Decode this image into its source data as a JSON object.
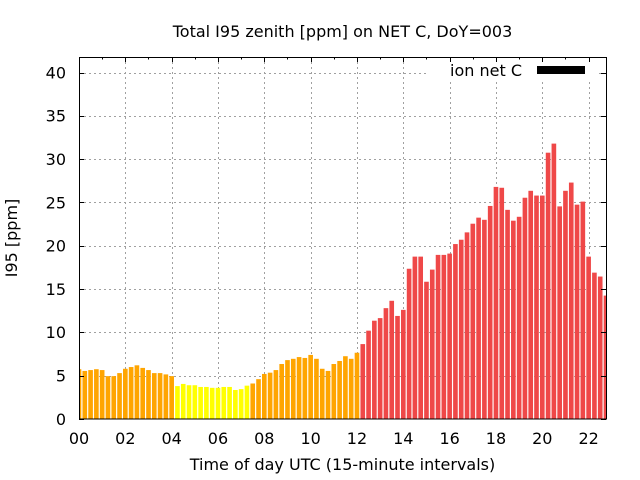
{
  "chart_data": {
    "type": "bar",
    "title": "Total I95 zenith [ppm] on NET C, DoY=003",
    "xlabel": "Time of day UTC (15-minute intervals)",
    "ylabel": "I95 [ppm]",
    "xlim": [
      0,
      22.75
    ],
    "ylim": [
      0,
      41.8
    ],
    "interval_hours": 0.25,
    "x_minor_tick_step": 1,
    "grid": true,
    "xticks": {
      "values": [
        0,
        2,
        4,
        6,
        8,
        10,
        12,
        14,
        16,
        18,
        20,
        22
      ],
      "labels": [
        "00",
        "02",
        "04",
        "06",
        "08",
        "10",
        "12",
        "14",
        "16",
        "18",
        "20",
        "22"
      ]
    },
    "yticks": {
      "values": [
        0,
        5,
        10,
        15,
        20,
        25,
        30,
        35,
        40
      ],
      "labels": [
        "0",
        "5",
        "10",
        "15",
        "20",
        "25",
        "30",
        "35",
        "40"
      ]
    },
    "legend": {
      "position": "top-right",
      "entries": [
        {
          "label": "ion net C",
          "color": "#000000"
        }
      ]
    },
    "color_segments": [
      {
        "from_hour": 0,
        "to_hour": 4.0,
        "color": "#ffa500"
      },
      {
        "from_hour": 4.25,
        "to_hour": 7.25,
        "color": "#ffff00"
      },
      {
        "from_hour": 7.5,
        "to_hour": 12.0,
        "color": "#ffa500"
      },
      {
        "from_hour": 12.25,
        "to_hour": 22.75,
        "color": "#ef4848"
      }
    ],
    "x": [
      0,
      0.25,
      0.5,
      0.75,
      1,
      1.25,
      1.5,
      1.75,
      2,
      2.25,
      2.5,
      2.75,
      3,
      3.25,
      3.5,
      3.75,
      4,
      4.25,
      4.5,
      4.75,
      5,
      5.25,
      5.5,
      5.75,
      6,
      6.25,
      6.5,
      6.75,
      7,
      7.25,
      7.5,
      7.75,
      8,
      8.25,
      8.5,
      8.75,
      9,
      9.25,
      9.5,
      9.75,
      10,
      10.25,
      10.5,
      10.75,
      11,
      11.25,
      11.5,
      11.75,
      12,
      12.25,
      12.5,
      12.75,
      13,
      13.25,
      13.5,
      13.75,
      14,
      14.25,
      14.5,
      14.75,
      15,
      15.25,
      15.5,
      15.75,
      16,
      16.25,
      16.5,
      16.75,
      17,
      17.25,
      17.5,
      17.75,
      18,
      18.25,
      18.5,
      18.75,
      19,
      19.25,
      19.5,
      19.75,
      20,
      20.25,
      20.5,
      20.75,
      21,
      21.25,
      21.5,
      21.75,
      22,
      22.25,
      22.5,
      22.75
    ],
    "series": [
      {
        "name": "ion net C",
        "values": [
          5.75,
          5.55,
          5.65,
          5.75,
          5.65,
          4.95,
          4.95,
          5.3,
          5.8,
          6.0,
          6.2,
          5.9,
          5.65,
          5.3,
          5.3,
          5.15,
          4.95,
          3.8,
          4.05,
          3.9,
          3.9,
          3.7,
          3.7,
          3.6,
          3.6,
          3.7,
          3.7,
          3.35,
          3.45,
          3.85,
          4.1,
          4.6,
          5.2,
          5.35,
          5.65,
          6.35,
          6.8,
          6.95,
          7.15,
          7.05,
          7.4,
          6.95,
          5.8,
          5.55,
          6.35,
          6.7,
          7.25,
          6.95,
          7.65,
          8.65,
          10.2,
          11.35,
          11.65,
          12.8,
          13.65,
          11.9,
          12.6,
          17.35,
          18.75,
          18.75,
          15.85,
          17.25,
          18.95,
          18.95,
          19.1,
          20.2,
          20.7,
          21.55,
          22.55,
          23.25,
          23.0,
          24.6,
          26.8,
          26.7,
          24.15,
          22.9,
          23.35,
          25.55,
          26.35,
          25.8,
          25.8,
          30.75,
          31.8,
          24.55,
          26.35,
          27.3,
          24.75,
          25.1,
          18.75,
          16.9,
          16.45,
          14.25
        ]
      }
    ]
  }
}
